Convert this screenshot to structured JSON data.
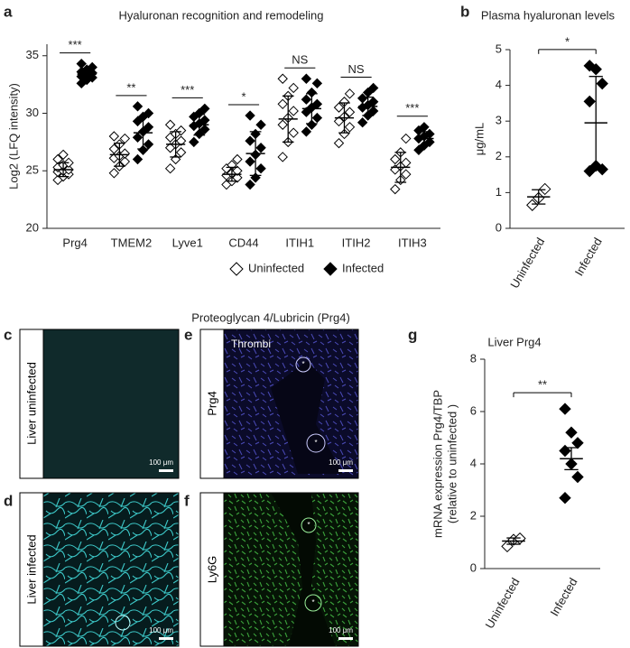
{
  "chart_data": [
    {
      "type": "dotplot",
      "title": "Hyaluronan recognition and remodeling",
      "ylabel": [
        "Log2 (LFQ intensity)"
      ],
      "categories": [
        "Prg4",
        "TMEM2",
        "Lyve1",
        "CD44",
        "ITIH1",
        "ITIH2",
        "ITIH3"
      ],
      "ylim": [
        20,
        36
      ],
      "yticks": [
        20,
        25,
        30,
        35
      ],
      "legend": "bottom",
      "significance": [
        "***",
        "**",
        "***",
        "*",
        "NS",
        "NS",
        "***"
      ],
      "series": [
        {
          "name": "Uninfected",
          "color": "#ffffff",
          "values": [
            [
              24.2,
              24.5,
              24.7,
              24.9,
              25.0,
              25.1,
              25.3,
              25.5,
              25.7,
              26.0,
              26.4
            ],
            [
              24.8,
              25.4,
              25.8,
              26.1,
              26.3,
              26.5,
              26.9,
              27.3,
              27.8,
              28.0
            ],
            [
              25.2,
              26.0,
              26.6,
              27.0,
              27.3,
              27.6,
              27.9,
              28.2,
              28.5,
              29.0
            ],
            [
              23.8,
              24.1,
              24.4,
              24.6,
              24.8,
              25.0,
              25.2,
              25.5,
              26.0
            ],
            [
              26.2,
              27.5,
              28.3,
              29.0,
              29.6,
              30.2,
              30.8,
              31.5,
              32.2,
              33.0
            ],
            [
              27.4,
              28.2,
              28.8,
              29.3,
              29.7,
              30.1,
              30.5,
              31.0,
              31.7
            ],
            [
              23.4,
              24.2,
              24.7,
              25.1,
              25.4,
              25.7,
              26.0,
              26.6,
              27.8
            ]
          ],
          "mean": [
            25.1,
            26.4,
            27.3,
            24.7,
            29.5,
            29.6,
            25.3
          ],
          "error": [
            0.6,
            1.0,
            1.1,
            0.6,
            2.0,
            1.3,
            1.3
          ]
        },
        {
          "name": "Infected",
          "color": "#000000",
          "values": [
            [
              32.6,
              32.9,
              33.1,
              33.2,
              33.4,
              33.5,
              33.6,
              33.8,
              34.0,
              34.3
            ],
            [
              26.0,
              26.8,
              27.3,
              27.9,
              28.4,
              28.8,
              29.3,
              29.7,
              30.0,
              30.6
            ],
            [
              27.5,
              28.2,
              28.6,
              28.9,
              29.1,
              29.4,
              29.7,
              30.0,
              30.4
            ],
            [
              23.8,
              24.4,
              25.2,
              25.8,
              26.4,
              27.0,
              27.6,
              28.2,
              29.0,
              29.8
            ],
            [
              28.4,
              29.0,
              29.6,
              30.1,
              30.5,
              30.8,
              31.2,
              31.8,
              32.6,
              33.0
            ],
            [
              29.2,
              29.8,
              30.2,
              30.5,
              30.7,
              31.0,
              31.3,
              31.8,
              32.2
            ],
            [
              26.8,
              27.2,
              27.5,
              27.8,
              28.0,
              28.2,
              28.5,
              28.8
            ]
          ],
          "mean": [
            33.4,
            28.3,
            29.0,
            26.5,
            30.4,
            30.6,
            27.8
          ],
          "error": [
            0.5,
            1.4,
            0.9,
            1.9,
            1.3,
            0.8,
            0.6
          ]
        }
      ]
    },
    {
      "type": "dotplot",
      "title": "Plasma hyaluronan levels",
      "ylabel": [
        "μg/mL"
      ],
      "categories": [
        "Uninfected",
        "Infected"
      ],
      "ylim": [
        0,
        5
      ],
      "yticks": [
        0,
        1,
        2,
        3,
        4,
        5
      ],
      "significance": "*",
      "marker_colors": [
        "#ffffff",
        "#000000"
      ],
      "series": [
        {
          "values": [
            [
              0.65,
              0.85,
              1.1
            ],
            [
              4.55,
              4.45,
              4.05,
              3.55,
              1.75,
              1.65,
              1.6
            ]
          ],
          "mean": [
            0.88,
            2.95
          ],
          "error": [
            0.2,
            1.3
          ]
        }
      ]
    },
    {
      "type": "dotplot",
      "title": "Liver Prg4",
      "ylabel": [
        "mRNA expression Prg4/TBP",
        "(relative to uninfected )"
      ],
      "categories": [
        "Uninfected",
        "Infected"
      ],
      "ylim": [
        0,
        8
      ],
      "yticks": [
        0,
        2,
        4,
        6,
        8
      ],
      "significance": "**",
      "marker_colors": [
        "#ffffff",
        "#000000"
      ],
      "series": [
        {
          "values": [
            [
              0.85,
              1.1,
              1.15
            ],
            [
              6.1,
              5.2,
              4.8,
              4.5,
              4.0,
              3.5,
              2.7
            ]
          ],
          "mean": [
            1.05,
            4.2
          ],
          "error": [
            0.12,
            0.42
          ]
        }
      ]
    }
  ],
  "figure": {
    "panel_labels": [
      "a",
      "b",
      "c",
      "d",
      "e",
      "f",
      "g"
    ],
    "section_title": "Proteoglycan 4/Lubricin (Prg4)",
    "images": [
      {
        "label": "Liver uninfected",
        "scale_bar": "100 μm"
      },
      {
        "label": "Liver infected",
        "scale_bar": "100 μm"
      },
      {
        "label": "Prg4",
        "scale_bar": "100 μm",
        "annotation": "Thrombi",
        "asterisk": "*"
      },
      {
        "label": "Ly6G",
        "scale_bar": "100 μm",
        "asterisk": "*"
      }
    ]
  }
}
